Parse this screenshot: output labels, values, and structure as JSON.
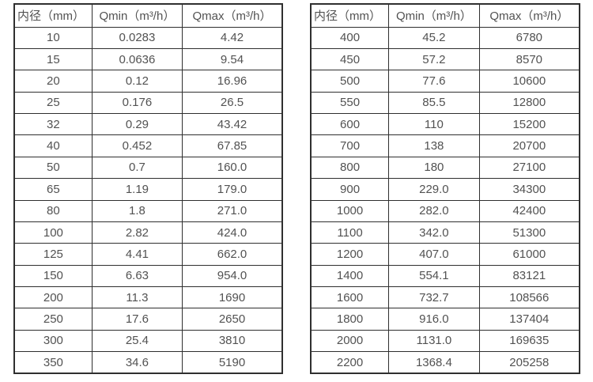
{
  "colors": {
    "border": "#2f2f2f",
    "text": "#525252",
    "background": "#ffffff"
  },
  "tables": [
    {
      "name": "small-diameter-flow-specs",
      "headers": [
        "内径（mm）",
        "Qmin（m³/h）",
        "Qmax（m³/h）"
      ],
      "rows": [
        [
          "10",
          "0.0283",
          "4.42"
        ],
        [
          "15",
          "0.0636",
          "9.54"
        ],
        [
          "20",
          "0.12",
          "16.96"
        ],
        [
          "25",
          "0.176",
          "26.5"
        ],
        [
          "32",
          "0.29",
          "43.42"
        ],
        [
          "40",
          "0.452",
          "67.85"
        ],
        [
          "50",
          "0.7",
          "160.0"
        ],
        [
          "65",
          "1.19",
          "179.0"
        ],
        [
          "80",
          "1.8",
          "271.0"
        ],
        [
          "100",
          "2.82",
          "424.0"
        ],
        [
          "125",
          "4.41",
          "662.0"
        ],
        [
          "150",
          "6.63",
          "954.0"
        ],
        [
          "200",
          "11.3",
          "1690"
        ],
        [
          "250",
          "17.6",
          "2650"
        ],
        [
          "300",
          "25.4",
          "3810"
        ],
        [
          "350",
          "34.6",
          "5190"
        ]
      ]
    },
    {
      "name": "large-diameter-flow-specs",
      "headers": [
        "内径（mm）",
        "Qmin（m³/h）",
        "Qmax（m³/h）"
      ],
      "rows": [
        [
          "400",
          "45.2",
          "6780"
        ],
        [
          "450",
          "57.2",
          "8570"
        ],
        [
          "500",
          "77.6",
          "10600"
        ],
        [
          "550",
          "85.5",
          "12800"
        ],
        [
          "600",
          "110",
          "15200"
        ],
        [
          "700",
          "138",
          "20700"
        ],
        [
          "800",
          "180",
          "27100"
        ],
        [
          "900",
          "229.0",
          "34300"
        ],
        [
          "1000",
          "282.0",
          "42400"
        ],
        [
          "1100",
          "342.0",
          "51300"
        ],
        [
          "1200",
          "407.0",
          "61000"
        ],
        [
          "1400",
          "554.1",
          "83121"
        ],
        [
          "1600",
          "732.7",
          "108566"
        ],
        [
          "1800",
          "916.0",
          "137404"
        ],
        [
          "2000",
          "1131.0",
          "169635"
        ],
        [
          "2200",
          "1368.4",
          "205258"
        ]
      ]
    }
  ]
}
